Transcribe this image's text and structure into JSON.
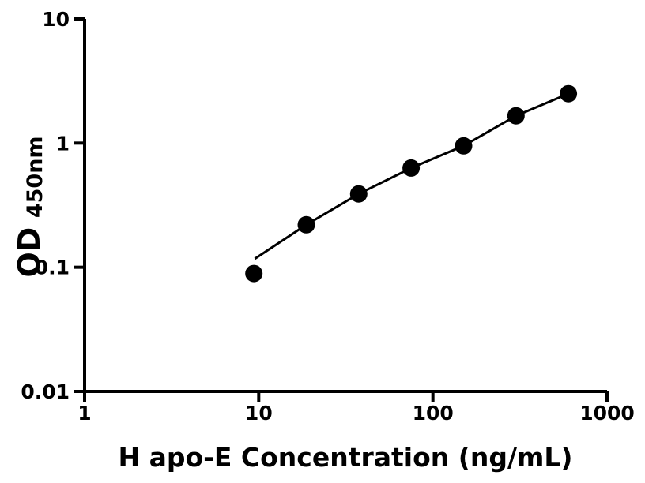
{
  "chart_data": {
    "type": "scatter",
    "title": "",
    "xlabel": "H apo-E Concentration (ng/mL)",
    "ylabel_main": "OD",
    "ylabel_sub": "450nm",
    "x_scale": "log",
    "y_scale": "log",
    "xlim": [
      1,
      1000
    ],
    "ylim": [
      0.01,
      10
    ],
    "grid": false,
    "legend_position": "none",
    "x_ticks": [
      {
        "value": 1,
        "label": "1"
      },
      {
        "value": 10,
        "label": "10"
      },
      {
        "value": 100,
        "label": "100"
      },
      {
        "value": 1000,
        "label": "1000"
      }
    ],
    "y_ticks": [
      {
        "value": 10,
        "label": "10"
      },
      {
        "value": 1,
        "label": "1"
      },
      {
        "value": 0.1,
        "label": "0.1"
      },
      {
        "value": 0.01,
        "label": "0.01"
      }
    ],
    "series": [
      {
        "name": "standard-curve-points",
        "type": "scatter",
        "marker": "circle",
        "marker_radius": 11,
        "color": "#000000",
        "x": [
          9.375,
          18.75,
          37.5,
          75,
          150,
          300,
          600
        ],
        "y": [
          0.089,
          0.22,
          0.39,
          0.63,
          0.95,
          1.66,
          2.5
        ]
      },
      {
        "name": "fit-line",
        "type": "line",
        "stroke_width": 3,
        "color": "#000000",
        "x": [
          9.5,
          18.75,
          37.5,
          75,
          150,
          300,
          600
        ],
        "y": [
          0.117,
          0.22,
          0.39,
          0.63,
          0.95,
          1.66,
          2.5
        ]
      }
    ],
    "colors": {
      "foreground": "#000000",
      "background": "#ffffff"
    }
  }
}
